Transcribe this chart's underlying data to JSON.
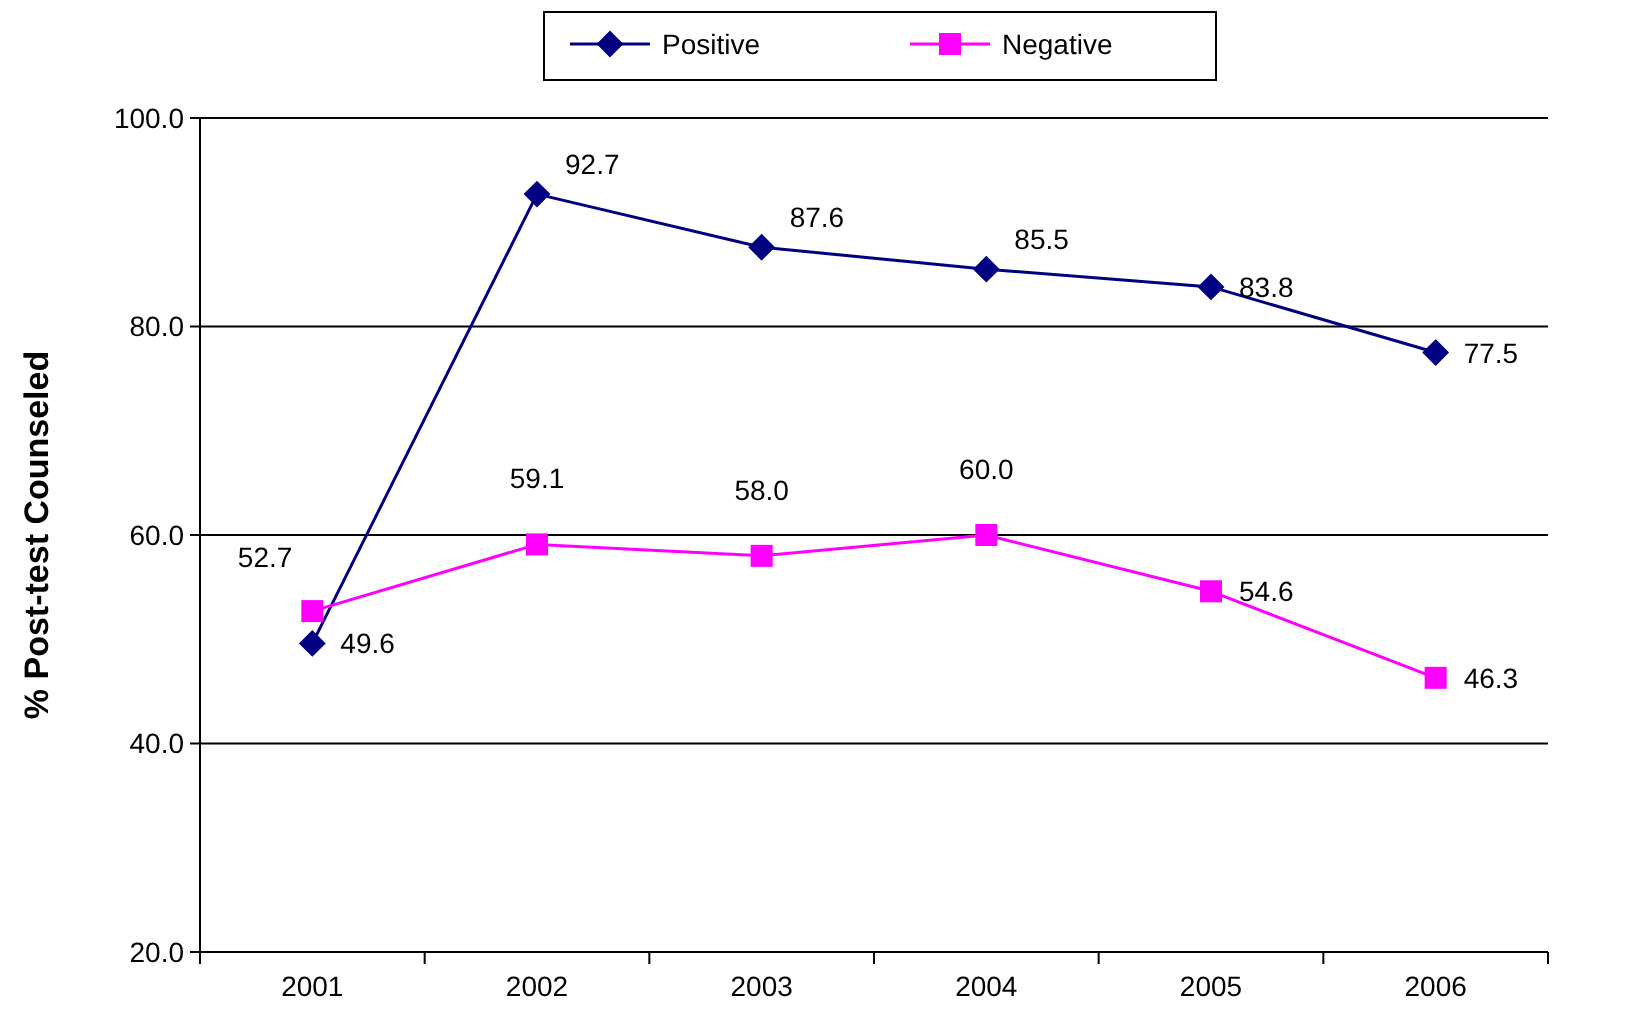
{
  "chart_data": {
    "type": "line",
    "ylabel": "% Post-test Counseled",
    "categories": [
      "2001",
      "2002",
      "2003",
      "2004",
      "2005",
      "2006"
    ],
    "series": [
      {
        "name": "Positive",
        "color": "#000080",
        "marker": "diamond",
        "values": [
          49.6,
          92.7,
          87.6,
          85.5,
          83.8,
          77.5
        ],
        "value_labels": [
          "49.6",
          "92.7",
          "87.6",
          "85.5",
          "83.8",
          "77.5"
        ]
      },
      {
        "name": "Negative",
        "color": "#ff00ff",
        "marker": "square",
        "values": [
          52.7,
          59.1,
          58.0,
          60.0,
          54.6,
          46.3
        ],
        "value_labels": [
          "52.7",
          "59.1",
          "58.0",
          "60.0",
          "54.6",
          "46.3"
        ]
      }
    ],
    "ylim": [
      20,
      100
    ],
    "yticks": [
      {
        "value": 20,
        "label": "20.0"
      },
      {
        "value": 40,
        "label": "40.0"
      },
      {
        "value": 60,
        "label": "60.0"
      },
      {
        "value": 80,
        "label": "80.0"
      },
      {
        "value": 100,
        "label": "100.0"
      }
    ],
    "grid": "y",
    "legend": "top"
  }
}
